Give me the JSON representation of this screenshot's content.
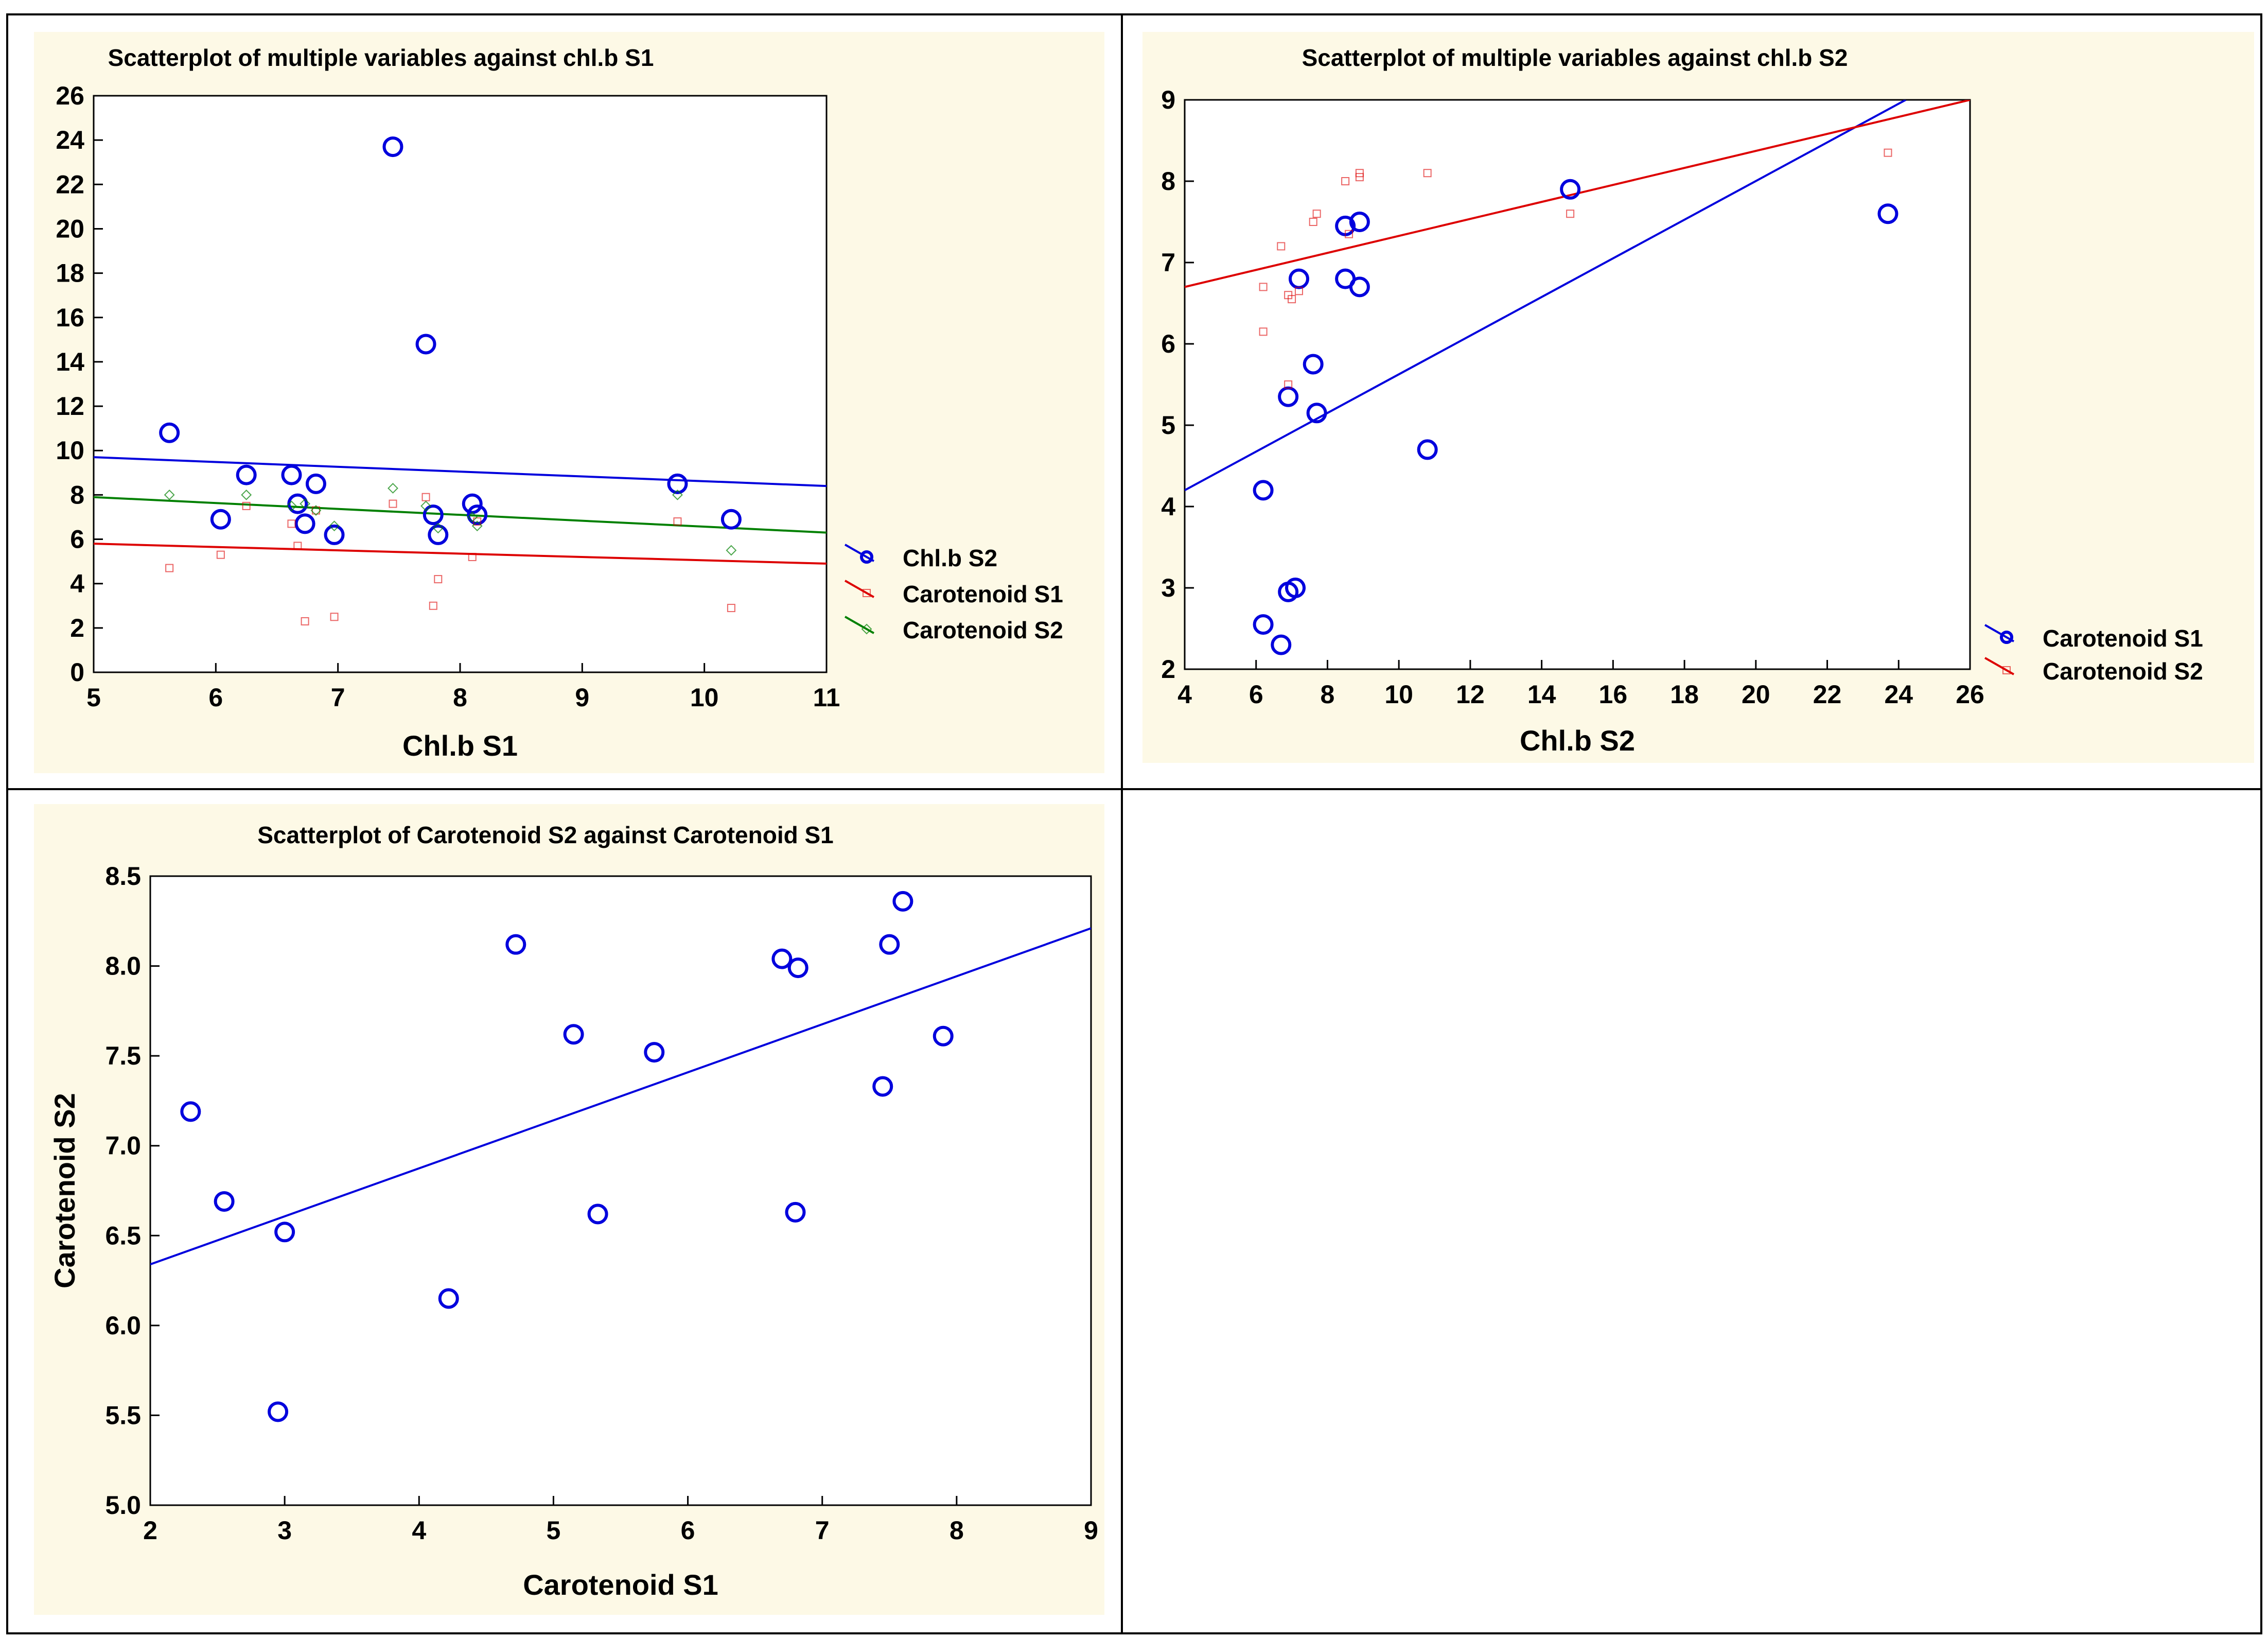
{
  "chart_data": [
    {
      "type": "scatter",
      "title": "Scatterplot of multiple variables against chl.b S1",
      "xlabel": "Chl.b S1",
      "ylabel": "",
      "xlim": [
        5,
        11
      ],
      "ylim": [
        0,
        26
      ],
      "xticks": [
        5,
        6,
        7,
        8,
        9,
        10,
        11
      ],
      "yticks": [
        0,
        2,
        4,
        6,
        8,
        10,
        12,
        14,
        16,
        18,
        20,
        22,
        24,
        26
      ],
      "grid": true,
      "legend": "right",
      "series": [
        {
          "name": "Chl.b S2",
          "color": "#0000dd",
          "marker": "circle",
          "x": [
            5.62,
            6.04,
            6.25,
            6.62,
            6.67,
            6.73,
            6.82,
            6.97,
            7.45,
            7.72,
            7.78,
            7.82,
            8.1,
            8.14,
            9.78,
            10.22
          ],
          "y": [
            10.8,
            6.9,
            8.9,
            8.9,
            7.6,
            6.7,
            8.5,
            6.2,
            23.7,
            14.8,
            7.1,
            6.2,
            7.6,
            7.1,
            8.5,
            6.9
          ],
          "fit": [
            [
              5,
              9.7
            ],
            [
              11,
              8.4
            ]
          ]
        },
        {
          "name": "Carotenoid S1",
          "color": "#dd0000",
          "marker": "square",
          "x": [
            5.62,
            6.04,
            6.25,
            6.62,
            6.67,
            6.73,
            6.82,
            6.97,
            7.45,
            7.72,
            7.78,
            7.82,
            8.1,
            8.14,
            9.78,
            10.22
          ],
          "y": [
            4.7,
            5.3,
            7.5,
            6.7,
            5.7,
            2.3,
            7.3,
            2.5,
            7.6,
            7.9,
            3.0,
            4.2,
            5.2,
            6.8,
            6.8,
            2.9
          ],
          "fit": [
            [
              5,
              5.8
            ],
            [
              11,
              4.9
            ]
          ]
        },
        {
          "name": "Carotenoid S2",
          "color": "#008000",
          "marker": "diamond",
          "x": [
            5.62,
            6.25,
            6.62,
            6.73,
            6.82,
            6.97,
            7.45,
            7.72,
            7.82,
            8.1,
            8.14,
            9.78,
            10.22
          ],
          "y": [
            8.0,
            8.0,
            7.5,
            7.6,
            7.3,
            6.6,
            8.3,
            7.5,
            6.5,
            7.0,
            6.6,
            8.0,
            5.5
          ],
          "fit": [
            [
              5,
              7.9
            ],
            [
              11,
              6.3
            ]
          ]
        }
      ]
    },
    {
      "type": "scatter",
      "title": "Scatterplot of multiple variables against chl.b S2",
      "xlabel": "Chl.b S2",
      "ylabel": "",
      "xlim": [
        4,
        26
      ],
      "ylim": [
        2,
        9
      ],
      "xticks": [
        4,
        6,
        8,
        10,
        12,
        14,
        16,
        18,
        20,
        22,
        24,
        26
      ],
      "yticks": [
        2,
        3,
        4,
        5,
        6,
        7,
        8,
        9
      ],
      "grid": true,
      "legend": "right",
      "series": [
        {
          "name": "Carotenoid S1",
          "color": "#0000dd",
          "marker": "circle",
          "x": [
            6.2,
            6.2,
            6.7,
            6.9,
            6.9,
            7.1,
            7.2,
            7.6,
            7.7,
            8.5,
            8.5,
            8.9,
            8.9,
            10.8,
            14.8,
            23.7
          ],
          "y": [
            4.2,
            2.55,
            2.3,
            5.35,
            2.95,
            3.0,
            6.8,
            5.75,
            5.15,
            7.45,
            6.8,
            6.7,
            7.5,
            4.7,
            7.9,
            7.6
          ],
          "fit": [
            [
              4,
              4.2
            ],
            [
              24.2,
              9.0
            ]
          ]
        },
        {
          "name": "Carotenoid S2",
          "color": "#dd0000",
          "marker": "square",
          "x": [
            6.2,
            6.2,
            6.7,
            6.9,
            6.9,
            7.0,
            7.2,
            7.6,
            7.7,
            8.5,
            8.6,
            8.9,
            8.9,
            10.8,
            14.8,
            23.7
          ],
          "y": [
            6.7,
            6.15,
            7.2,
            5.5,
            6.6,
            6.55,
            6.65,
            7.5,
            7.6,
            8.0,
            7.35,
            8.05,
            8.1,
            8.1,
            7.6,
            8.35
          ],
          "fit": [
            [
              4,
              6.7
            ],
            [
              26,
              9.0
            ]
          ]
        }
      ]
    },
    {
      "type": "scatter",
      "title": "Scatterplot of Carotenoid S2 against Carotenoid S1",
      "xlabel": "Carotenoid S1",
      "ylabel": "Carotenoid S2",
      "xlim": [
        2,
        9
      ],
      "ylim": [
        5.0,
        8.5
      ],
      "xticks": [
        "2",
        "3",
        "4",
        "5",
        "6",
        "7",
        "8",
        "9"
      ],
      "yticks": [
        "5.0",
        "5.5",
        "6.0",
        "6.5",
        "7.0",
        "7.5",
        "8.0",
        "8.5"
      ],
      "grid": true,
      "legend": "none",
      "series": [
        {
          "name": "Carotenoid S2",
          "color": "#0000dd",
          "marker": "circle",
          "x": [
            2.3,
            2.55,
            2.95,
            3.0,
            4.22,
            4.72,
            5.15,
            5.33,
            5.75,
            6.7,
            6.8,
            6.82,
            7.45,
            7.5,
            7.6,
            7.9
          ],
          "y": [
            7.19,
            6.69,
            5.52,
            6.52,
            6.15,
            8.12,
            7.62,
            6.62,
            7.52,
            8.04,
            6.63,
            7.99,
            7.33,
            8.12,
            8.36,
            7.61
          ],
          "fit": [
            [
              2,
              6.34
            ],
            [
              9,
              8.21
            ]
          ]
        }
      ]
    }
  ]
}
